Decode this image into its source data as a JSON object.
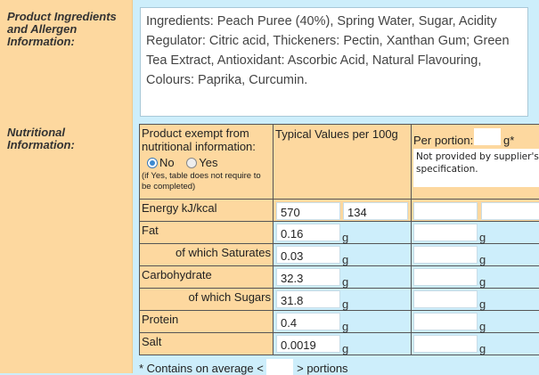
{
  "ingredients": {
    "label": "Product Ingredients and Allergen Information:",
    "text": "Ingredients: Peach Puree (40%), Spring Water, Sugar, Acidity Regulator: Citric acid, Thickeners: Pectin, Xanthan Gum; Green Tea Extract, Antioxidant: Ascorbic Acid, Natural Flavouring, Colours: Paprika, Curcumin."
  },
  "nutrition": {
    "label": "Nutritional Information:",
    "exempt_label": "Product exempt from nutritional information:",
    "option_no": "No",
    "option_yes": "Yes",
    "selected": "No",
    "exempt_note": "(if Yes, table does not require to be completed)",
    "typical_header": "Typical Values per 100g",
    "portion_label": "Per portion:",
    "portion_value": "",
    "portion_unit": "g*",
    "portion_note": "Not provided by supplier's specification.",
    "energy": {
      "label": "Energy kJ/kcal",
      "kj": "570",
      "kcal": "134",
      "portion_kj": "",
      "portion_kcal": ""
    },
    "rows": [
      {
        "label": "Fat",
        "value": "0.16",
        "unit": "g",
        "portion": ""
      },
      {
        "label": "of which Saturates",
        "value": "0.03",
        "unit": "g",
        "portion": ""
      },
      {
        "label": "Carbohydrate",
        "value": "32.3",
        "unit": "g",
        "portion": ""
      },
      {
        "label": "of which Sugars",
        "value": "31.8",
        "unit": "g",
        "portion": ""
      },
      {
        "label": "Protein",
        "value": "0.4",
        "unit": "g",
        "portion": ""
      },
      {
        "label": "Salt",
        "value": "0.0019",
        "unit": "g",
        "portion": ""
      }
    ],
    "footer_pre": "* Contains on average <",
    "footer_value": "",
    "footer_post": "> portions"
  }
}
